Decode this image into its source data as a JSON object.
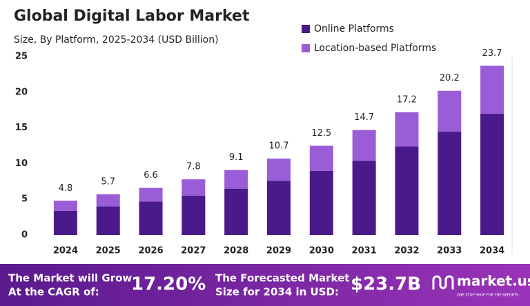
{
  "chart_data": {
    "type": "stacked-bar",
    "title": "Global Digital Labor Market",
    "subtitle": "Size, By Platform, 2025-2034 (USD Billion)",
    "categories": [
      "2024",
      "2025",
      "2026",
      "2027",
      "2028",
      "2029",
      "2030",
      "2031",
      "2032",
      "2033",
      "2034"
    ],
    "series": [
      {
        "name": "Online Platforms",
        "color": "#4a1a8a",
        "values": [
          3.4,
          4.0,
          4.7,
          5.5,
          6.5,
          7.6,
          9.0,
          10.4,
          12.4,
          14.5,
          17.0
        ]
      },
      {
        "name": "Location-based Platforms",
        "color": "#9b5cd8",
        "values": [
          1.4,
          1.7,
          1.9,
          2.3,
          2.6,
          3.1,
          3.5,
          4.3,
          4.8,
          5.7,
          6.7
        ]
      }
    ],
    "totals": [
      4.8,
      5.7,
      6.6,
      7.8,
      9.1,
      10.7,
      12.5,
      14.7,
      17.2,
      20.2,
      23.7
    ],
    "ylim": [
      0,
      25
    ],
    "yticks": [
      0,
      5,
      10,
      15,
      20,
      25
    ],
    "grid": false,
    "legend": "top-right"
  },
  "footer": {
    "cagr_text": [
      "The Market will Grow",
      "At the CAGR of:"
    ],
    "cagr": "17.20%",
    "forecast_text": [
      "The Forecasted Market",
      "Size for 2034 in USD:"
    ],
    "forecast": "$23.7B",
    "brand": "market.us",
    "tagline": "ONE STOP SHOP FOR THE REPORTS"
  }
}
